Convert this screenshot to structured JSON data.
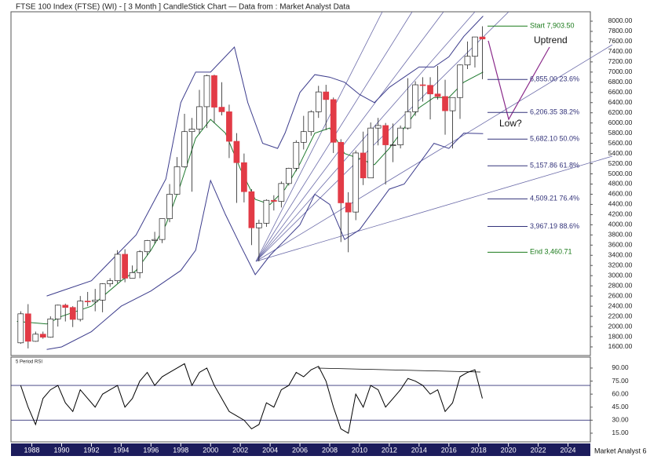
{
  "chart_data": [
    {
      "type": "candlestick",
      "title": "FTSE 100 Index (FTSE) (WI) - [ 3 Month ] CandleStick Chart — Data from : Market Analyst Data",
      "x": [
        1987.25,
        1987.75,
        1988.25,
        1988.75,
        1989.25,
        1989.75,
        1990.25,
        1990.75,
        1991.25,
        1991.75,
        1992.25,
        1992.75,
        1993.25,
        1993.75,
        1994.25,
        1994.75,
        1995.25,
        1995.75,
        1996.25,
        1996.75,
        1997.25,
        1997.75,
        1998.25,
        1998.75,
        1999.25,
        1999.75,
        2000.25,
        2000.75,
        2001.25,
        2001.75,
        2002.25,
        2002.75,
        2003.25,
        2003.75,
        2004.25,
        2004.75,
        2005.25,
        2005.75,
        2006.25,
        2006.75,
        2007.25,
        2007.75,
        2008.25,
        2008.75,
        2009.25,
        2009.75,
        2010.25,
        2010.75,
        2011.25,
        2011.75,
        2012.25,
        2012.75,
        2013.25,
        2013.75,
        2014.25,
        2014.75,
        2015.25,
        2015.75,
        2016.25,
        2016.75,
        2017.25,
        2017.75,
        2018.25
      ],
      "open": [
        1680,
        2250,
        1710,
        1850,
        1790,
        2150,
        2420,
        2375,
        2140,
        2500,
        2490,
        2520,
        2840,
        2900,
        3420,
        2950,
        3060,
        3470,
        3690,
        3710,
        4120,
        4600,
        5140,
        5830,
        5880,
        6320,
        6930,
        6310,
        6220,
        5640,
        5220,
        4650,
        3940,
        4030,
        4480,
        4460,
        4810,
        5110,
        5620,
        5830,
        6220,
        6610,
        6460,
        5620,
        4430,
        4250,
        5410,
        4920,
        5900,
        5950,
        5570,
        5570,
        5900,
        6220,
        6750,
        6740,
        6570,
        6520,
        6240,
        6500,
        7140,
        7310,
        7690
      ],
      "high": [
        2300,
        2440,
        1900,
        1900,
        2200,
        2430,
        2450,
        2400,
        2600,
        2680,
        2740,
        2850,
        2950,
        3500,
        3520,
        3200,
        3500,
        3700,
        3860,
        4120,
        4800,
        5330,
        6180,
        6100,
        6650,
        6950,
        6950,
        6800,
        6360,
        5800,
        5400,
        4700,
        4100,
        4500,
        4580,
        4850,
        5120,
        5660,
        6140,
        6250,
        6730,
        6750,
        6500,
        5680,
        4640,
        5460,
        5830,
        6010,
        6100,
        6000,
        5990,
        5950,
        6880,
        6820,
        6900,
        6900,
        7120,
        6850,
        6500,
        7150,
        7600,
        7690,
        7900
      ],
      "low": [
        1660,
        1570,
        1700,
        1760,
        1780,
        2000,
        2100,
        1990,
        2100,
        2400,
        2300,
        2280,
        2780,
        2850,
        2870,
        2950,
        2950,
        3400,
        3630,
        3640,
        4050,
        4600,
        5120,
        4650,
        5780,
        5900,
        6000,
        6150,
        5310,
        4430,
        4440,
        3600,
        3280,
        3960,
        4280,
        4340,
        4770,
        5050,
        5480,
        5750,
        6100,
        5860,
        5410,
        3660,
        3460,
        4090,
        4780,
        4920,
        5560,
        4790,
        5230,
        5500,
        5870,
        6140,
        6420,
        6070,
        6460,
        5770,
        5500,
        6080,
        7060,
        7090,
        6860
      ],
      "close": [
        2250,
        1710,
        1850,
        1790,
        2150,
        2420,
        2375,
        2140,
        2500,
        2490,
        2520,
        2840,
        2900,
        3420,
        2950,
        3060,
        3470,
        3690,
        3710,
        4120,
        4600,
        5140,
        5830,
        5880,
        6320,
        6930,
        6310,
        6220,
        5640,
        5220,
        4650,
        3940,
        4030,
        4480,
        4460,
        4810,
        5110,
        5620,
        5830,
        6220,
        6610,
        6460,
        5620,
        4430,
        4250,
        5410,
        4920,
        5900,
        5950,
        5570,
        5570,
        5900,
        6220,
        6750,
        6740,
        6570,
        6520,
        6240,
        6500,
        7140,
        7310,
        7690,
        7650
      ],
      "up_color": "#ffffff",
      "down_color": "#e23b46",
      "overlays": [
        {
          "color": "#3c3c8c",
          "x": [
            1989,
            1990,
            1992,
            1994,
            1995,
            1997,
            1998,
            1999,
            2000,
            2001.6,
            2002.5,
            2003.5,
            2004.5,
            2005,
            2006,
            2007,
            2008,
            2009,
            2010,
            2011,
            2012,
            2013,
            2014,
            2015,
            2016,
            2017,
            2018.3
          ],
          "values": [
            2600,
            2700,
            2900,
            3500,
            3800,
            4900,
            6400,
            7000,
            7000,
            7490,
            6400,
            5600,
            5500,
            5800,
            6600,
            6950,
            6900,
            6800,
            6560,
            6400,
            6700,
            6900,
            7100,
            7100,
            7300,
            7700,
            8100
          ]
        },
        {
          "color": "#1f7a2f",
          "x": [
            1987,
            1989,
            1990,
            1992,
            1994,
            1995,
            1996,
            1997,
            1998,
            1999,
            2000,
            2001,
            2002,
            2003,
            2004,
            2005,
            2006,
            2007,
            2008,
            2009,
            2010,
            2011,
            2012,
            2013,
            2014,
            2015,
            2016,
            2017,
            2018.3
          ],
          "values": [
            2100,
            2050,
            2200,
            2400,
            2900,
            3100,
            3500,
            4000,
            4800,
            5700,
            6070,
            5800,
            5100,
            4500,
            4400,
            4700,
            5200,
            5800,
            5900,
            5400,
            5300,
            5180,
            5500,
            5900,
            6300,
            6500,
            6500,
            6800,
            7000
          ]
        },
        {
          "color": "#3c3c8c",
          "x": [
            1989,
            1990,
            1992,
            1994,
            1996,
            1997,
            1998,
            1999,
            2000,
            2001,
            2002,
            2003,
            2004,
            2005,
            2006,
            2007,
            2008,
            2009,
            2010,
            2011,
            2012,
            2013,
            2014,
            2015,
            2016,
            2017,
            2018.3
          ],
          "values": [
            1550,
            1600,
            1900,
            2400,
            2700,
            2900,
            3100,
            3500,
            4870,
            4200,
            3600,
            3020,
            3400,
            3700,
            4000,
            4600,
            4400,
            3710,
            3900,
            4300,
            4700,
            4800,
            5200,
            5600,
            5500,
            5800,
            5790
          ]
        }
      ],
      "levels": [
        {
          "label": "Start 7,903.50",
          "value": 7903.5,
          "color": "#1a7a1a"
        },
        {
          "label": "6,855.00 23.6%",
          "value": 6855,
          "color": "#33337a"
        },
        {
          "label": "6,206.35 38.2%",
          "value": 6206.35,
          "color": "#33337a"
        },
        {
          "label": "5,682.10 50.0%",
          "value": 5682.1,
          "color": "#33337a"
        },
        {
          "label": "5,157.86 61.8%",
          "value": 5157.86,
          "color": "#33337a"
        },
        {
          "label": "4,509.21 76.4%",
          "value": 4509.21,
          "color": "#33337a"
        },
        {
          "label": "3,967.19 88.6%",
          "value": 3967.19,
          "color": "#33337a"
        },
        {
          "label": "End 3,460.71",
          "value": 3460.71,
          "color": "#1a7a1a"
        }
      ],
      "notes": [
        "Uptrend",
        "Low?"
      ],
      "xlim": [
        1986.6,
        2025.5
      ],
      "xticks": [
        1988,
        1990,
        1992,
        1994,
        1996,
        1998,
        2000,
        2002,
        2004,
        2006,
        2008,
        2010,
        2012,
        2014,
        2016,
        2018,
        2020,
        2022,
        2024
      ],
      "ylim": [
        1430,
        8185
      ],
      "yticks": [
        {
          "value": 1600,
          "label": "1600.00"
        },
        {
          "value": 1800,
          "label": "1800.00"
        },
        {
          "value": 2000,
          "label": "2000.00"
        },
        {
          "value": 2200,
          "label": "2200.00"
        },
        {
          "value": 2400,
          "label": "2400.00"
        },
        {
          "value": 2600,
          "label": "2600.00"
        },
        {
          "value": 2800,
          "label": "2800.00"
        },
        {
          "value": 3000,
          "label": "3000.00"
        },
        {
          "value": 3200,
          "label": "3200.00"
        },
        {
          "value": 3400,
          "label": "3400.00"
        },
        {
          "value": 3600,
          "label": "3600.00"
        },
        {
          "value": 3800,
          "label": "3800.00"
        },
        {
          "value": 4000,
          "label": "4000.00"
        },
        {
          "value": 4200,
          "label": "4200.00"
        },
        {
          "value": 4400,
          "label": "4400.00"
        },
        {
          "value": 4600,
          "label": "4600.00"
        },
        {
          "value": 4800,
          "label": "4800.00"
        },
        {
          "value": 5000,
          "label": "5000.00"
        },
        {
          "value": 5200,
          "label": "5200.00"
        },
        {
          "value": 5400,
          "label": "5400.00"
        },
        {
          "value": 5600,
          "label": "5600.00"
        },
        {
          "value": 5800,
          "label": "5800.00"
        },
        {
          "value": 6000,
          "label": "6000.00"
        },
        {
          "value": 6200,
          "label": "6200.00"
        },
        {
          "value": 6400,
          "label": "6400.00"
        },
        {
          "value": 6600,
          "label": "6600.00"
        },
        {
          "value": 6800,
          "label": "6800.00"
        },
        {
          "value": 7000,
          "label": "7000.00"
        },
        {
          "value": 7200,
          "label": "7200.00"
        },
        {
          "value": 7400,
          "label": "7400.00"
        },
        {
          "value": 7600,
          "label": "7600.00"
        },
        {
          "value": 7800,
          "label": "7800.00"
        },
        {
          "value": 8000,
          "label": "8000.00"
        }
      ]
    },
    {
      "type": "line",
      "title": "5 Period RSI",
      "color": "#000000",
      "x": [
        1987.25,
        1987.75,
        1988.25,
        1988.75,
        1989.25,
        1989.75,
        1990.25,
        1990.75,
        1991.25,
        1991.75,
        1992.25,
        1992.75,
        1993.25,
        1993.75,
        1994.25,
        1994.75,
        1995.25,
        1995.75,
        1996.25,
        1996.75,
        1997.25,
        1997.75,
        1998.25,
        1998.75,
        1999.25,
        1999.75,
        2000.25,
        2000.75,
        2001.25,
        2001.75,
        2002.25,
        2002.75,
        2003.25,
        2003.75,
        2004.25,
        2004.75,
        2005.25,
        2005.75,
        2006.25,
        2006.75,
        2007.25,
        2007.75,
        2008.25,
        2008.75,
        2009.25,
        2009.75,
        2010.25,
        2010.75,
        2011.25,
        2011.75,
        2012.25,
        2012.75,
        2013.25,
        2013.75,
        2014.25,
        2014.75,
        2015.25,
        2015.75,
        2016.25,
        2016.75,
        2017.25,
        2017.75,
        2018.25
      ],
      "values": [
        70,
        45,
        25,
        55,
        65,
        70,
        50,
        40,
        65,
        55,
        45,
        60,
        65,
        70,
        45,
        55,
        75,
        85,
        70,
        80,
        85,
        90,
        95,
        70,
        85,
        90,
        70,
        55,
        40,
        35,
        30,
        20,
        25,
        50,
        45,
        65,
        70,
        85,
        80,
        88,
        92,
        75,
        45,
        20,
        15,
        60,
        45,
        70,
        65,
        45,
        55,
        65,
        78,
        75,
        70,
        60,
        65,
        40,
        50,
        80,
        85,
        88,
        55
      ],
      "levels": [
        70,
        30
      ],
      "level_color": "#33337a",
      "ylim": [
        5,
        102.6
      ],
      "yticks": [
        {
          "value": 15,
          "label": "15.00"
        },
        {
          "value": 30,
          "label": "30.00"
        },
        {
          "value": 45,
          "label": "45.00"
        },
        {
          "value": 60,
          "label": "60.00"
        },
        {
          "value": 75,
          "label": "75.00"
        },
        {
          "value": 90,
          "label": "90.00"
        }
      ]
    }
  ],
  "footer": "Market Analyst 6"
}
